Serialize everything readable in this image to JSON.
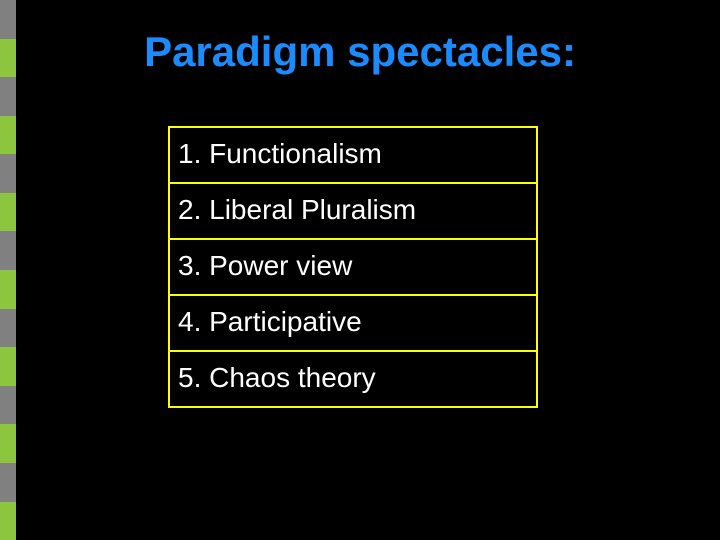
{
  "slide": {
    "title": "Paradigm spectacles:",
    "title_color": "#1a8cff",
    "title_fontsize": 42,
    "title_fontweight": "bold",
    "background_color": "#000000",
    "list": {
      "border_color": "#ffff00",
      "border_width": 2,
      "item_color": "#ffffff",
      "item_fontsize": 28,
      "items": [
        "1. Functionalism",
        "2. Liberal Pluralism",
        "3. Power view",
        "4. Participative",
        "5. Chaos theory"
      ]
    },
    "left_stripe": {
      "width": 16,
      "segments": 14,
      "colors": [
        "#808080",
        "#8cc63f"
      ]
    }
  }
}
